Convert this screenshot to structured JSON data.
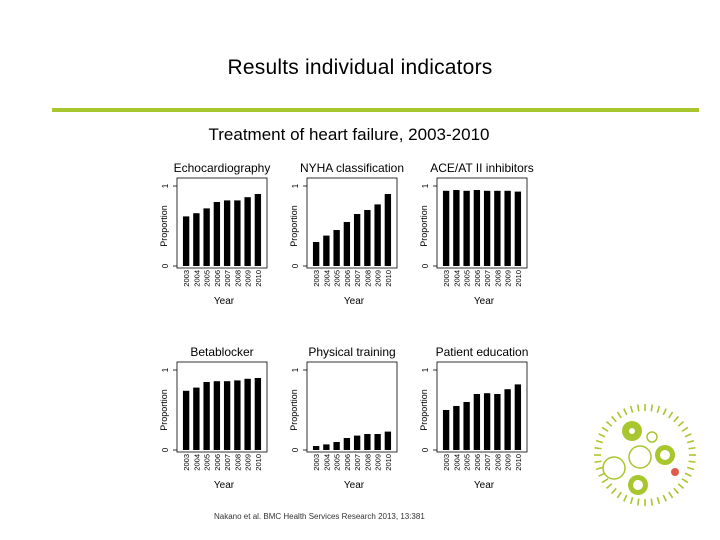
{
  "slide": {
    "title": "Results individual indicators",
    "citation": "Nakano et al. BMC Health Services Research 2013, 13:381",
    "accent_color": "#a8c62e"
  },
  "figure": {
    "title": "Treatment of heart failure, 2003-2010"
  },
  "chart_data": [
    {
      "type": "bar",
      "title": "Echocardiography",
      "categories": [
        "2003",
        "2004",
        "2005",
        "2006",
        "2007",
        "2008",
        "2009",
        "2010"
      ],
      "values": [
        0.62,
        0.66,
        0.72,
        0.8,
        0.82,
        0.82,
        0.86,
        0.9
      ],
      "xlabel": "Year",
      "ylabel": "Proportion",
      "yticks": [
        "0",
        "1"
      ],
      "ylim": [
        0,
        1
      ]
    },
    {
      "type": "bar",
      "title": "NYHA classification",
      "categories": [
        "2003",
        "2004",
        "2005",
        "2006",
        "2007",
        "2008",
        "2009",
        "2010"
      ],
      "values": [
        0.3,
        0.38,
        0.45,
        0.55,
        0.65,
        0.7,
        0.77,
        0.9
      ],
      "xlabel": "Year",
      "ylabel": "Proportion",
      "yticks": [
        "0",
        "1"
      ],
      "ylim": [
        0,
        1
      ]
    },
    {
      "type": "bar",
      "title": "ACE/AT II inhibitors",
      "categories": [
        "2003",
        "2004",
        "2005",
        "2006",
        "2007",
        "2008",
        "2009",
        "2010"
      ],
      "values": [
        0.94,
        0.95,
        0.94,
        0.95,
        0.94,
        0.94,
        0.94,
        0.93
      ],
      "xlabel": "Year",
      "ylabel": "Proportion",
      "yticks": [
        "0",
        "1"
      ],
      "ylim": [
        0,
        1
      ]
    },
    {
      "type": "bar",
      "title": "Betablocker",
      "categories": [
        "2003",
        "2004",
        "2005",
        "2006",
        "2007",
        "2008",
        "2009",
        "2010"
      ],
      "values": [
        0.74,
        0.78,
        0.85,
        0.86,
        0.86,
        0.87,
        0.89,
        0.9
      ],
      "xlabel": "Year",
      "ylabel": "Proportion",
      "yticks": [
        "0",
        "1"
      ],
      "ylim": [
        0,
        1
      ]
    },
    {
      "type": "bar",
      "title": "Physical training",
      "categories": [
        "2003",
        "2004",
        "2005",
        "2006",
        "2007",
        "2008",
        "2009",
        "2010"
      ],
      "values": [
        0.05,
        0.07,
        0.1,
        0.15,
        0.18,
        0.2,
        0.2,
        0.23
      ],
      "xlabel": "Year",
      "ylabel": "Proportion",
      "yticks": [
        "0",
        "1"
      ],
      "ylim": [
        0,
        1
      ]
    },
    {
      "type": "bar",
      "title": "Patient education",
      "categories": [
        "2003",
        "2004",
        "2005",
        "2006",
        "2007",
        "2008",
        "2009",
        "2010"
      ],
      "values": [
        0.5,
        0.55,
        0.6,
        0.7,
        0.71,
        0.7,
        0.76,
        0.82
      ],
      "xlabel": "Year",
      "ylabel": "Proportion",
      "yticks": [
        "0",
        "1"
      ],
      "ylim": [
        0,
        1
      ]
    }
  ],
  "logo": {
    "ring_color": "#a8c62e",
    "dot_color": "#e25a4a"
  }
}
